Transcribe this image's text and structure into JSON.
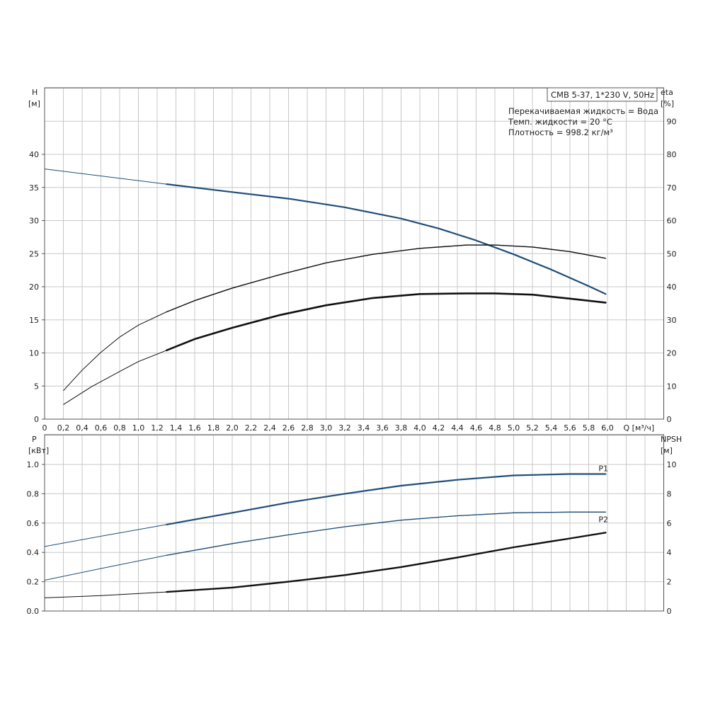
{
  "legend_box": {
    "model": "CMB 5-37, 1*230 V, 50Hz",
    "liquid": "Перекачиваемая жидкость = Вода",
    "temp": "Темп. жидкости = 20 °C",
    "density": "Плотность = 998.2 кг/м³"
  },
  "colors": {
    "blue": "#1f4e79",
    "black": "#111111",
    "grid": "#c8c8c8"
  },
  "chart_data": [
    {
      "type": "line",
      "panel": "top",
      "y_left_label": [
        "H",
        "[м]"
      ],
      "y_right_label": [
        "eta",
        "[%]"
      ],
      "x_label": "Q [м³/ч]",
      "xlim": [
        0,
        6.6
      ],
      "ylim": [
        0,
        50
      ],
      "ylim_right": [
        0,
        100
      ],
      "x_ticks": [
        "0",
        "0,2",
        "0,4",
        "0,6",
        "0,8",
        "1,0",
        "1,2",
        "1,4",
        "1,6",
        "1,8",
        "2,0",
        "2,2",
        "2,4",
        "2,6",
        "2,8",
        "3,0",
        "3,2",
        "3,4",
        "3,6",
        "3,8",
        "4,0",
        "4,2",
        "4,4",
        "4,6",
        "4,8",
        "5,0",
        "5,2",
        "5,4",
        "5,6",
        "5,8",
        "6,0"
      ],
      "y_ticks_left": [
        "0",
        "5",
        "10",
        "15",
        "20",
        "25",
        "30",
        "35",
        "40"
      ],
      "y_ticks_right": [
        "0",
        "10",
        "20",
        "30",
        "40",
        "50",
        "60",
        "70",
        "80",
        "90"
      ],
      "grid": true,
      "series": [
        {
          "axis": "left",
          "color": "blue",
          "width_main": 2.2,
          "x": [
            0,
            1.3,
            2.0,
            2.6,
            3.2,
            3.8,
            4.2,
            4.6,
            5.0,
            5.4,
            5.8,
            5.98
          ],
          "y": [
            37.8,
            35.5,
            34.3,
            33.3,
            32.0,
            30.3,
            28.8,
            27.0,
            24.9,
            22.6,
            20.1,
            18.9
          ]
        },
        {
          "axis": "left",
          "color": "black",
          "width_main": 1.4,
          "x": [
            0.2,
            0.4,
            0.6,
            0.8,
            1.0,
            1.3,
            1.6,
            2.0,
            2.5,
            3.0,
            3.5,
            4.0,
            4.5,
            4.8,
            5.2,
            5.6,
            5.98
          ],
          "y": [
            4.3,
            7.4,
            10.1,
            12.4,
            14.2,
            16.2,
            17.9,
            19.8,
            21.8,
            23.6,
            24.9,
            25.8,
            26.3,
            26.3,
            26.0,
            25.3,
            24.3
          ]
        },
        {
          "axis": "left",
          "color": "black",
          "width_main": 2.6,
          "x": [
            0.2,
            0.5,
            0.8,
            1.0,
            1.3,
            1.6,
            2.0,
            2.5,
            3.0,
            3.5,
            4.0,
            4.5,
            4.8,
            5.2,
            5.6,
            5.98
          ],
          "y": [
            2.2,
            4.9,
            7.2,
            8.7,
            10.4,
            12.1,
            13.8,
            15.7,
            17.2,
            18.3,
            18.9,
            19.0,
            19.0,
            18.8,
            18.2,
            17.6
          ]
        }
      ]
    },
    {
      "type": "line",
      "panel": "bottom",
      "y_left_label": [
        "P",
        "[кВт]"
      ],
      "y_right_label": [
        "NPSH",
        "[м]"
      ],
      "xlim": [
        0,
        6.6
      ],
      "ylim": [
        0,
        1.0
      ],
      "ylim_right": [
        0,
        10
      ],
      "y_ticks_left": [
        "0.0",
        "0.2",
        "0.4",
        "0.6",
        "0.8",
        "1.0"
      ],
      "y_ticks_right": [
        "0",
        "2",
        "4",
        "6",
        "8",
        "10"
      ],
      "grid": true,
      "series": [
        {
          "name": "P1",
          "axis": "left",
          "color": "blue",
          "width_main": 2.2,
          "x": [
            0,
            0.6,
            1.3,
            2.0,
            2.6,
            3.2,
            3.8,
            4.4,
            5.0,
            5.6,
            5.98
          ],
          "y": [
            0.44,
            0.51,
            0.59,
            0.67,
            0.74,
            0.8,
            0.855,
            0.895,
            0.925,
            0.935,
            0.935
          ]
        },
        {
          "name": "P2",
          "axis": "left",
          "color": "blue",
          "width_main": 1.3,
          "x": [
            0,
            0.6,
            1.3,
            2.0,
            2.6,
            3.2,
            3.8,
            4.4,
            5.0,
            5.6,
            5.98
          ],
          "y": [
            0.21,
            0.29,
            0.38,
            0.46,
            0.52,
            0.575,
            0.62,
            0.65,
            0.67,
            0.675,
            0.675
          ]
        },
        {
          "axis": "right",
          "color": "black",
          "width_main": 2.4,
          "x": [
            0,
            0.6,
            1.3,
            2.0,
            2.6,
            3.2,
            3.8,
            4.4,
            5.0,
            5.6,
            5.98
          ],
          "y": [
            0.9,
            1.05,
            1.3,
            1.6,
            2.0,
            2.45,
            3.0,
            3.65,
            4.35,
            4.95,
            5.35
          ]
        }
      ]
    }
  ]
}
